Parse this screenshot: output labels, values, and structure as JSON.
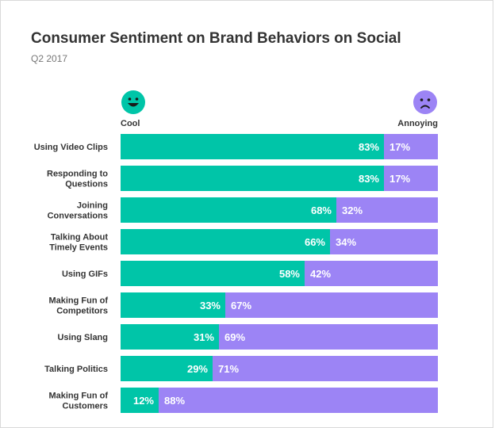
{
  "colors": {
    "cool": "#00c5a8",
    "annoying": "#9c84f5",
    "title": "#333333"
  },
  "header": {
    "title": "Consumer Sentiment on Brand Behaviors on Social",
    "subtitle": "Q2 2017"
  },
  "legend": {
    "cool": {
      "label": "Cool",
      "icon": "smiley-face-icon"
    },
    "annoying": {
      "label": "Annoying",
      "icon": "frowning-face-icon"
    }
  },
  "chart_data": {
    "type": "bar",
    "orientation": "horizontal",
    "stacked": true,
    "title": "Consumer Sentiment on Brand Behaviors on Social",
    "subtitle": "Q2 2017",
    "categories": [
      [
        "Using Video Clips"
      ],
      [
        "Responding to",
        "Questions"
      ],
      [
        "Joining",
        "Conversations"
      ],
      [
        "Talking About",
        "Timely Events"
      ],
      [
        "Using GIFs"
      ],
      [
        "Making Fun of",
        "Competitors"
      ],
      [
        "Using Slang"
      ],
      [
        "Talking Politics"
      ],
      [
        "Making Fun of",
        "Customers"
      ]
    ],
    "series": [
      {
        "name": "Cool",
        "values": [
          83,
          83,
          68,
          66,
          58,
          33,
          31,
          29,
          12
        ]
      },
      {
        "name": "Annoying",
        "values": [
          17,
          17,
          32,
          34,
          42,
          67,
          69,
          71,
          88
        ]
      }
    ],
    "xlim": [
      0,
      100
    ],
    "value_suffix": "%",
    "grid": false,
    "legend_position": "top"
  }
}
